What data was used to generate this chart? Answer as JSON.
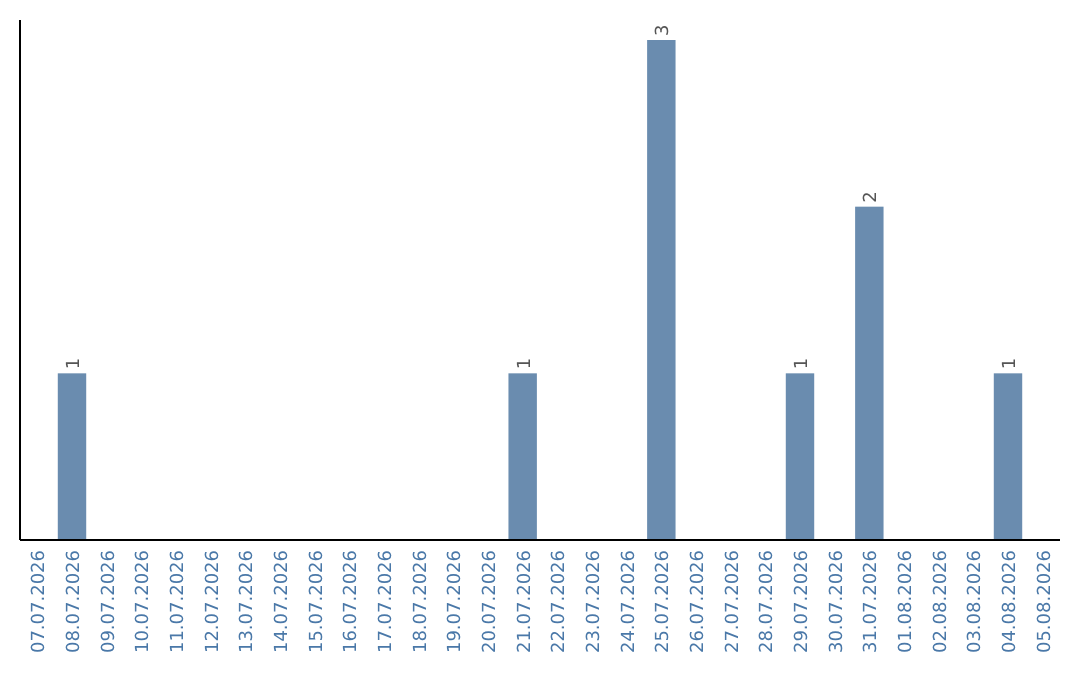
{
  "chart_data": {
    "type": "bar",
    "categories": [
      "07.07.2026",
      "08.07.2026",
      "09.07.2026",
      "10.07.2026",
      "11.07.2026",
      "12.07.2026",
      "13.07.2026",
      "14.07.2026",
      "15.07.2026",
      "16.07.2026",
      "17.07.2026",
      "18.07.2026",
      "19.07.2026",
      "20.07.2026",
      "21.07.2026",
      "22.07.2026",
      "23.07.2026",
      "24.07.2026",
      "25.07.2026",
      "26.07.2026",
      "27.07.2026",
      "28.07.2026",
      "29.07.2026",
      "30.07.2026",
      "31.07.2026",
      "01.08.2026",
      "02.08.2026",
      "03.08.2026",
      "04.08.2026",
      "05.08.2026"
    ],
    "values": [
      0,
      1,
      0,
      0,
      0,
      0,
      0,
      0,
      0,
      0,
      0,
      0,
      0,
      0,
      1,
      0,
      0,
      0,
      3,
      0,
      0,
      0,
      1,
      0,
      2,
      0,
      0,
      0,
      1,
      0
    ],
    "value_labels": [
      null,
      "1",
      null,
      null,
      null,
      null,
      null,
      null,
      null,
      null,
      null,
      null,
      null,
      null,
      "1",
      null,
      null,
      null,
      "3",
      null,
      null,
      null,
      "1",
      null,
      "2",
      null,
      null,
      null,
      "1",
      null
    ],
    "color": "#6a8caf"
  }
}
